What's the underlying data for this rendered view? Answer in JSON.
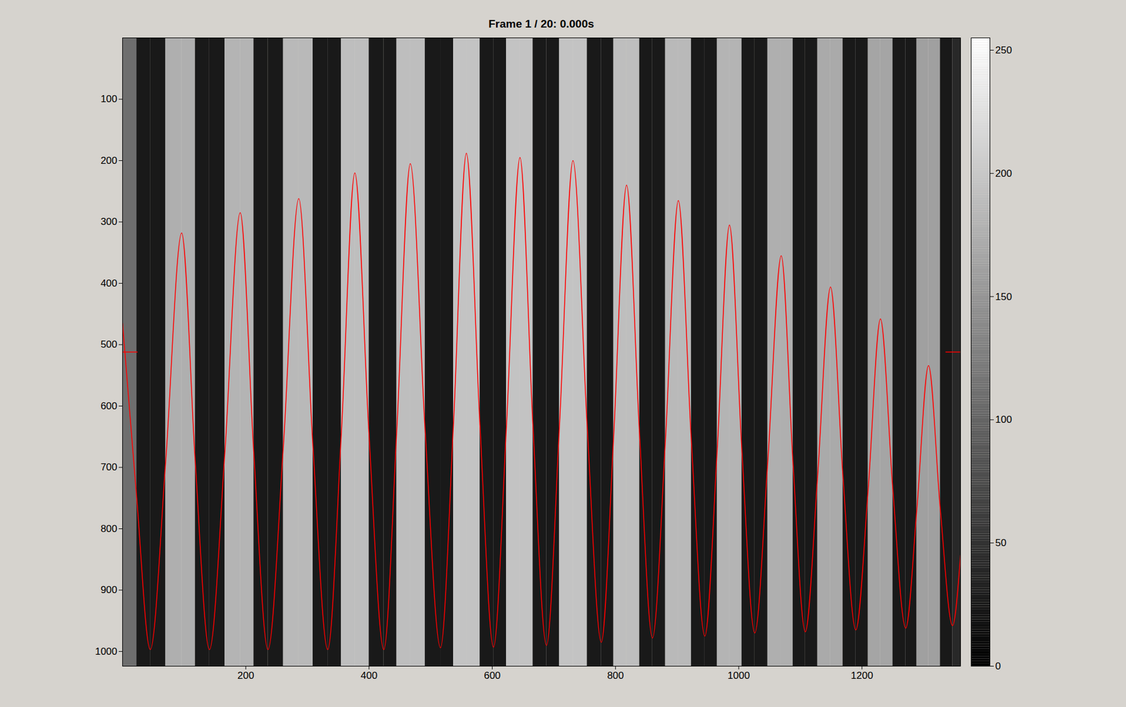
{
  "chart_data": {
    "type": "heatmap_line",
    "title": "Frame 1 / 20: 0.000s",
    "xlim": [
      0,
      1360
    ],
    "ylim": [
      0,
      1024
    ],
    "xticks": [
      200,
      400,
      600,
      800,
      1000,
      1200
    ],
    "yticks": [
      100,
      200,
      300,
      400,
      500,
      600,
      700,
      800,
      900,
      1000
    ],
    "image": {
      "x_edges": [
        0,
        23,
        45,
        70,
        96,
        118,
        141,
        166,
        191,
        213,
        236,
        261,
        286,
        309,
        333,
        355,
        377,
        400,
        424,
        445,
        467,
        491,
        516,
        537,
        558,
        580,
        602,
        623,
        645,
        666,
        688,
        709,
        731,
        754,
        777,
        797,
        818,
        839,
        860,
        881,
        902,
        923,
        945,
        965,
        985,
        1005,
        1026,
        1047,
        1069,
        1088,
        1108,
        1128,
        1149,
        1169,
        1190,
        1210,
        1230,
        1250,
        1271,
        1289,
        1308,
        1327,
        1347,
        1360
      ],
      "y_edges": [
        0,
        1024
      ],
      "cells": [
        [
          110,
          25,
          25,
          175,
          175,
          25,
          25,
          180,
          180,
          25,
          25,
          185,
          185,
          25,
          25,
          190,
          190,
          25,
          25,
          190,
          190,
          25,
          25,
          195,
          195,
          25,
          25,
          195,
          195,
          25,
          25,
          195,
          195,
          25,
          25,
          190,
          190,
          25,
          25,
          185,
          185,
          25,
          25,
          180,
          180,
          25,
          25,
          175,
          175,
          25,
          25,
          170,
          170,
          25,
          25,
          165,
          165,
          25,
          25,
          160,
          160,
          25,
          40
        ]
      ]
    },
    "colorbar": {
      "range": [
        0,
        255
      ],
      "ticks": [
        0,
        50,
        100,
        150,
        200,
        250
      ]
    },
    "series": [
      {
        "color": "#ff0000",
        "x": [
          0,
          23,
          45,
          70,
          96,
          118,
          141,
          166,
          191,
          213,
          236,
          261,
          286,
          309,
          333,
          355,
          377,
          400,
          424,
          445,
          467,
          491,
          516,
          537,
          558,
          580,
          602,
          623,
          645,
          666,
          688,
          709,
          731,
          754,
          777,
          797,
          818,
          839,
          860,
          881,
          902,
          923,
          945,
          965,
          985,
          1005,
          1026,
          1047,
          1069,
          1088,
          1108,
          1128,
          1149,
          1169,
          1190,
          1210,
          1230,
          1250,
          1271,
          1289,
          1308,
          1327,
          1347,
          1360
        ],
        "values": [
          465,
          750,
          997,
          691,
          318,
          691,
          997,
          677,
          285,
          677,
          997,
          666,
          262,
          666,
          997,
          647,
          220,
          647,
          997,
          641,
          205,
          639,
          994,
          631,
          188,
          631,
          993,
          634,
          195,
          632,
          990,
          634,
          200,
          632,
          985,
          650,
          240,
          646,
          978,
          657,
          265,
          655,
          975,
          673,
          305,
          671,
          970,
          693,
          355,
          692,
          968,
          715,
          406,
          713,
          965,
          737,
          458,
          735,
          962,
          769,
          534,
          767,
          958,
          843
        ]
      }
    ],
    "profile_row": 512
  }
}
